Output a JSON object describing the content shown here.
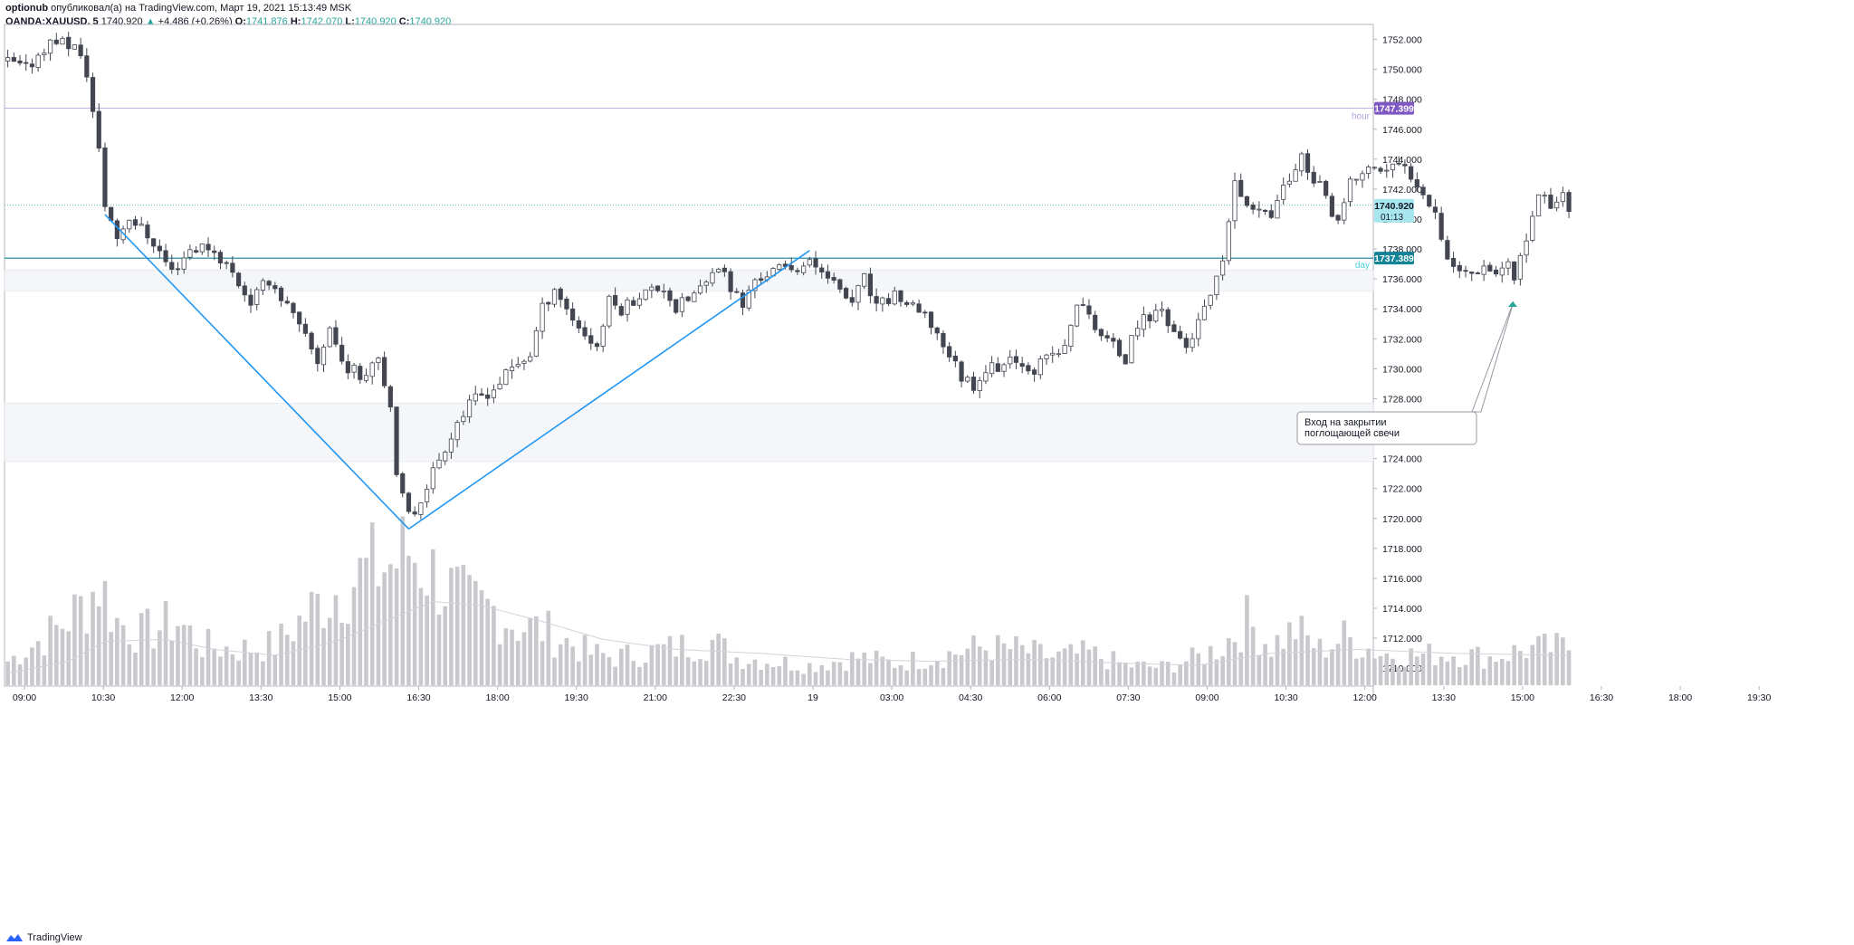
{
  "header": {
    "author": "optionub",
    "published_text": "опубликовал(а) на TradingView.com, Март 19, 2021 15:13:49 MSK",
    "symbol": "OANDA:XAUUSD, 5",
    "last": "1740.920",
    "change": "+4.486 (+0.26%)",
    "o_label": "O:",
    "o": "1741.876",
    "h_label": "H:",
    "h": "1742.070",
    "l_label": "L:",
    "l": "1740.920",
    "c_label": "C:",
    "c": "1740.920"
  },
  "footer": {
    "brand": "TradingView"
  },
  "colors": {
    "up": "#26a69a",
    "hour": "#7e57c2",
    "day": "#138496",
    "trend": "#2196f3",
    "volume": "#c8c9cc",
    "candle_dark": "#434651",
    "candle_light": "#ffffff"
  },
  "chart_data": {
    "type": "candlestick",
    "x_ticks": [
      "09:00",
      "10:30",
      "12:00",
      "13:30",
      "15:00",
      "16:30",
      "18:00",
      "19:30",
      "21:00",
      "22:30",
      "19",
      "03:00",
      "04:30",
      "06:00",
      "07:30",
      "09:00",
      "10:30",
      "12:00",
      "13:30",
      "15:00",
      "16:30",
      "18:00",
      "19:30"
    ],
    "y_ticks": [
      "1752.000",
      "1750.000",
      "1748.000",
      "1746.000",
      "1744.000",
      "1742.000",
      "1740.000",
      "1738.000",
      "1736.000",
      "1734.000",
      "1732.000",
      "1730.000",
      "1728.000",
      "1726.000",
      "1724.000",
      "1722.000",
      "1720.000",
      "1718.000",
      "1716.000",
      "1714.000",
      "1712.000",
      "1710.000"
    ],
    "ylim": [
      1708.8,
      1753.0
    ],
    "price_labels": {
      "hour": {
        "value": "1747.399",
        "text": "hour"
      },
      "day": {
        "value": "1737.389",
        "text": "day"
      },
      "last": {
        "value": "1740.920",
        "countdown": "01:13"
      }
    },
    "zones": [
      {
        "from": 1723.8,
        "to": 1727.7
      },
      {
        "from": 1735.2,
        "to": 1736.6
      }
    ],
    "annotation": {
      "text": [
        "Вход на закрытии",
        "поглощающей свечи"
      ]
    },
    "trendlines": [
      {
        "from": {
          "t": 16,
          "p": 1740.3
        },
        "to": {
          "t": 66,
          "p": 1719.3
        }
      },
      {
        "from": {
          "t": 66,
          "p": 1719.3
        },
        "to": {
          "t": 132,
          "p": 1737.9
        }
      }
    ],
    "anchors": [
      [
        0,
        1750.5
      ],
      [
        3,
        1750.0
      ],
      [
        6,
        1751.5
      ],
      [
        8,
        1752.0
      ],
      [
        11,
        1751.5
      ],
      [
        13,
        1749.8
      ],
      [
        15,
        1744.5
      ],
      [
        16,
        1741.0
      ],
      [
        18,
        1738.8
      ],
      [
        20,
        1740.2
      ],
      [
        24,
        1738.5
      ],
      [
        27,
        1736.5
      ],
      [
        30,
        1738.0
      ],
      [
        33,
        1738.2
      ],
      [
        36,
        1737.0
      ],
      [
        40,
        1734.5
      ],
      [
        43,
        1736.0
      ],
      [
        46,
        1734.2
      ],
      [
        49,
        1732.0
      ],
      [
        51,
        1730.5
      ],
      [
        53,
        1732.8
      ],
      [
        55,
        1730.5
      ],
      [
        58,
        1729.5
      ],
      [
        61,
        1731.0
      ],
      [
        63,
        1727.5
      ],
      [
        64,
        1722.5
      ],
      [
        66,
        1720.2
      ],
      [
        67,
        1720.5
      ],
      [
        69,
        1722.3
      ],
      [
        71,
        1724.0
      ],
      [
        74,
        1726.5
      ],
      [
        77,
        1728.0
      ],
      [
        80,
        1728.7
      ],
      [
        83,
        1730.0
      ],
      [
        86,
        1731.0
      ],
      [
        88,
        1734.0
      ],
      [
        90,
        1735.5
      ],
      [
        92,
        1734.0
      ],
      [
        95,
        1732.3
      ],
      [
        97,
        1731.5
      ],
      [
        99,
        1734.5
      ],
      [
        101,
        1734.0
      ],
      [
        104,
        1735.0
      ],
      [
        108,
        1735.5
      ],
      [
        110,
        1734.0
      ],
      [
        113,
        1735.0
      ],
      [
        116,
        1736.0
      ],
      [
        117,
        1737.0
      ],
      [
        119,
        1735.5
      ],
      [
        121,
        1734.2
      ],
      [
        123,
        1736.0
      ],
      [
        126,
        1736.5
      ],
      [
        129,
        1736.8
      ],
      [
        132,
        1737.0
      ],
      [
        135,
        1736.5
      ],
      [
        137,
        1735.0
      ],
      [
        139,
        1734.5
      ],
      [
        141,
        1736.0
      ],
      [
        143,
        1734.0
      ],
      [
        146,
        1735.0
      ],
      [
        149,
        1734.0
      ],
      [
        152,
        1733.0
      ],
      [
        155,
        1731.0
      ],
      [
        157,
        1729.5
      ],
      [
        159,
        1729.0
      ],
      [
        161,
        1730.0
      ],
      [
        164,
        1730.3
      ],
      [
        167,
        1730.5
      ],
      [
        169,
        1730.0
      ],
      [
        172,
        1731.0
      ],
      [
        174,
        1731.3
      ],
      [
        176,
        1734.5
      ],
      [
        178,
        1733.5
      ],
      [
        180,
        1732.3
      ],
      [
        182,
        1731.5
      ],
      [
        184,
        1730.6
      ],
      [
        186,
        1733.0
      ],
      [
        188,
        1733.5
      ],
      [
        190,
        1734.0
      ],
      [
        192,
        1732.5
      ],
      [
        194,
        1731.5
      ],
      [
        196,
        1733.0
      ],
      [
        198,
        1734.8
      ],
      [
        200,
        1736.8
      ],
      [
        201,
        1740.0
      ],
      [
        202,
        1742.5
      ],
      [
        204,
        1740.5
      ],
      [
        206,
        1741.0
      ],
      [
        208,
        1740.5
      ],
      [
        210,
        1742.0
      ],
      [
        212,
        1743.5
      ],
      [
        213,
        1744.5
      ],
      [
        214,
        1743.0
      ],
      [
        216,
        1742.5
      ],
      [
        218,
        1740.0
      ],
      [
        219,
        1739.5
      ],
      [
        221,
        1742.5
      ],
      [
        223,
        1743.0
      ],
      [
        225,
        1743.5
      ],
      [
        227,
        1743.2
      ],
      [
        229,
        1743.6
      ],
      [
        231,
        1743.0
      ],
      [
        233,
        1742.0
      ],
      [
        235,
        1740.5
      ],
      [
        237,
        1737.5
      ],
      [
        239,
        1736.5
      ],
      [
        241,
        1736.5
      ],
      [
        243,
        1737.0
      ],
      [
        245,
        1736.5
      ],
      [
        247,
        1737.0
      ],
      [
        248,
        1735.5
      ],
      [
        249,
        1737.5
      ],
      [
        251,
        1740.0
      ],
      [
        252,
        1741.8
      ],
      [
        254,
        1741.0
      ],
      [
        256,
        1741.6
      ],
      [
        257,
        1740.9
      ]
    ],
    "volume_anchors": [
      [
        0,
        1.2
      ],
      [
        8,
        2.8
      ],
      [
        13,
        4.2
      ],
      [
        15,
        5.2
      ],
      [
        18,
        3.2
      ],
      [
        22,
        2.6
      ],
      [
        28,
        3.2
      ],
      [
        32,
        2.0
      ],
      [
        38,
        1.8
      ],
      [
        44,
        2.0
      ],
      [
        50,
        3.8
      ],
      [
        56,
        5.2
      ],
      [
        60,
        5.8
      ],
      [
        64,
        6.2
      ],
      [
        66,
        6.8
      ],
      [
        68,
        6.2
      ],
      [
        72,
        5.0
      ],
      [
        76,
        4.0
      ],
      [
        80,
        3.8
      ],
      [
        84,
        3.0
      ],
      [
        88,
        2.8
      ],
      [
        92,
        2.2
      ],
      [
        96,
        1.6
      ],
      [
        100,
        1.4
      ],
      [
        104,
        1.6
      ],
      [
        110,
        1.9
      ],
      [
        116,
        2.2
      ],
      [
        120,
        1.4
      ],
      [
        126,
        1.2
      ],
      [
        132,
        1.0
      ],
      [
        140,
        1.4
      ],
      [
        146,
        1.1
      ],
      [
        154,
        1.5
      ],
      [
        160,
        1.9
      ],
      [
        166,
        1.8
      ],
      [
        172,
        1.4
      ],
      [
        178,
        1.6
      ],
      [
        184,
        1.0
      ],
      [
        190,
        0.9
      ],
      [
        196,
        1.4
      ],
      [
        200,
        2.0
      ],
      [
        204,
        3.2
      ],
      [
        208,
        2.0
      ],
      [
        212,
        2.8
      ],
      [
        216,
        1.8
      ],
      [
        220,
        2.4
      ],
      [
        226,
        1.6
      ],
      [
        232,
        1.5
      ],
      [
        238,
        1.6
      ],
      [
        244,
        1.4
      ],
      [
        250,
        1.8
      ],
      [
        257,
        1.9
      ]
    ],
    "volume_ma_anchors": [
      [
        0,
        0.6
      ],
      [
        10,
        1.2
      ],
      [
        16,
        2.2
      ],
      [
        26,
        2.3
      ],
      [
        34,
        1.8
      ],
      [
        44,
        1.5
      ],
      [
        54,
        2.2
      ],
      [
        62,
        3.2
      ],
      [
        70,
        4.2
      ],
      [
        78,
        4.0
      ],
      [
        88,
        3.2
      ],
      [
        98,
        2.3
      ],
      [
        110,
        1.8
      ],
      [
        124,
        1.6
      ],
      [
        138,
        1.3
      ],
      [
        152,
        1.2
      ],
      [
        168,
        1.3
      ],
      [
        184,
        1.1
      ],
      [
        196,
        1.0
      ],
      [
        208,
        1.6
      ],
      [
        222,
        1.8
      ],
      [
        238,
        1.6
      ],
      [
        257,
        1.5
      ]
    ]
  }
}
